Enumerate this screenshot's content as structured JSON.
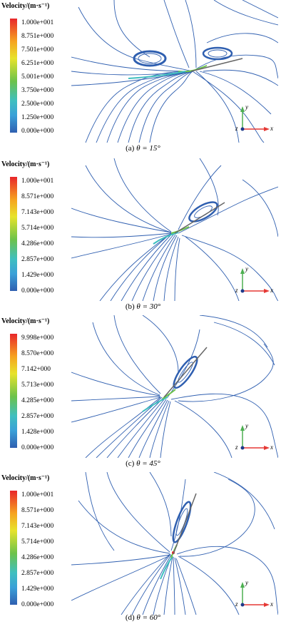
{
  "panels": [
    {
      "title": "Velocity/(m·s⁻¹)",
      "ticks": [
        "1.000e+001",
        "8.751e+000",
        "7.501e+000",
        "6.251e+000",
        "5.001e+000",
        "3.750e+000",
        "2.500e+000",
        "1.250e+000",
        "0.000e+000"
      ],
      "caption_prefix": "(a)",
      "caption_angle": "θ = 15°"
    },
    {
      "title": "Velocity/(m·s⁻¹)",
      "ticks": [
        "1.000e+001",
        "8.571e+000",
        "7.143e+000",
        "5.714e+000",
        "4.286e+000",
        "2.857e+000",
        "1.429e+000",
        "0.000e+000"
      ],
      "caption_prefix": "(b)",
      "caption_angle": "θ = 30°"
    },
    {
      "title": "Velocity/(m·s⁻¹)",
      "ticks": [
        "9.998e+000",
        "8.570e+000",
        "7.142+000",
        "5.713e+000",
        "4.285e+000",
        "2.857e+000",
        "1.428e+000",
        "0.000e+000"
      ],
      "caption_prefix": "(c)",
      "caption_angle": "θ = 45°"
    },
    {
      "title": "Velocity/(m·s⁻¹)",
      "ticks": [
        "1.000e+001",
        "8.571e+000",
        "7.143e+000",
        "5.714e+000",
        "4.286e+000",
        "2.857e+000",
        "1.429e+000",
        "0.000e+000"
      ],
      "caption_prefix": "(d)",
      "caption_angle": "θ = 60°"
    }
  ],
  "axis_labels": {
    "x": "x",
    "y": "y",
    "z": "z"
  },
  "gradient_colors": [
    "#e8262b",
    "#f6a320",
    "#e7e32b",
    "#6cc24a",
    "#3fbfbf",
    "#3aa0d8",
    "#2f5fb0"
  ]
}
